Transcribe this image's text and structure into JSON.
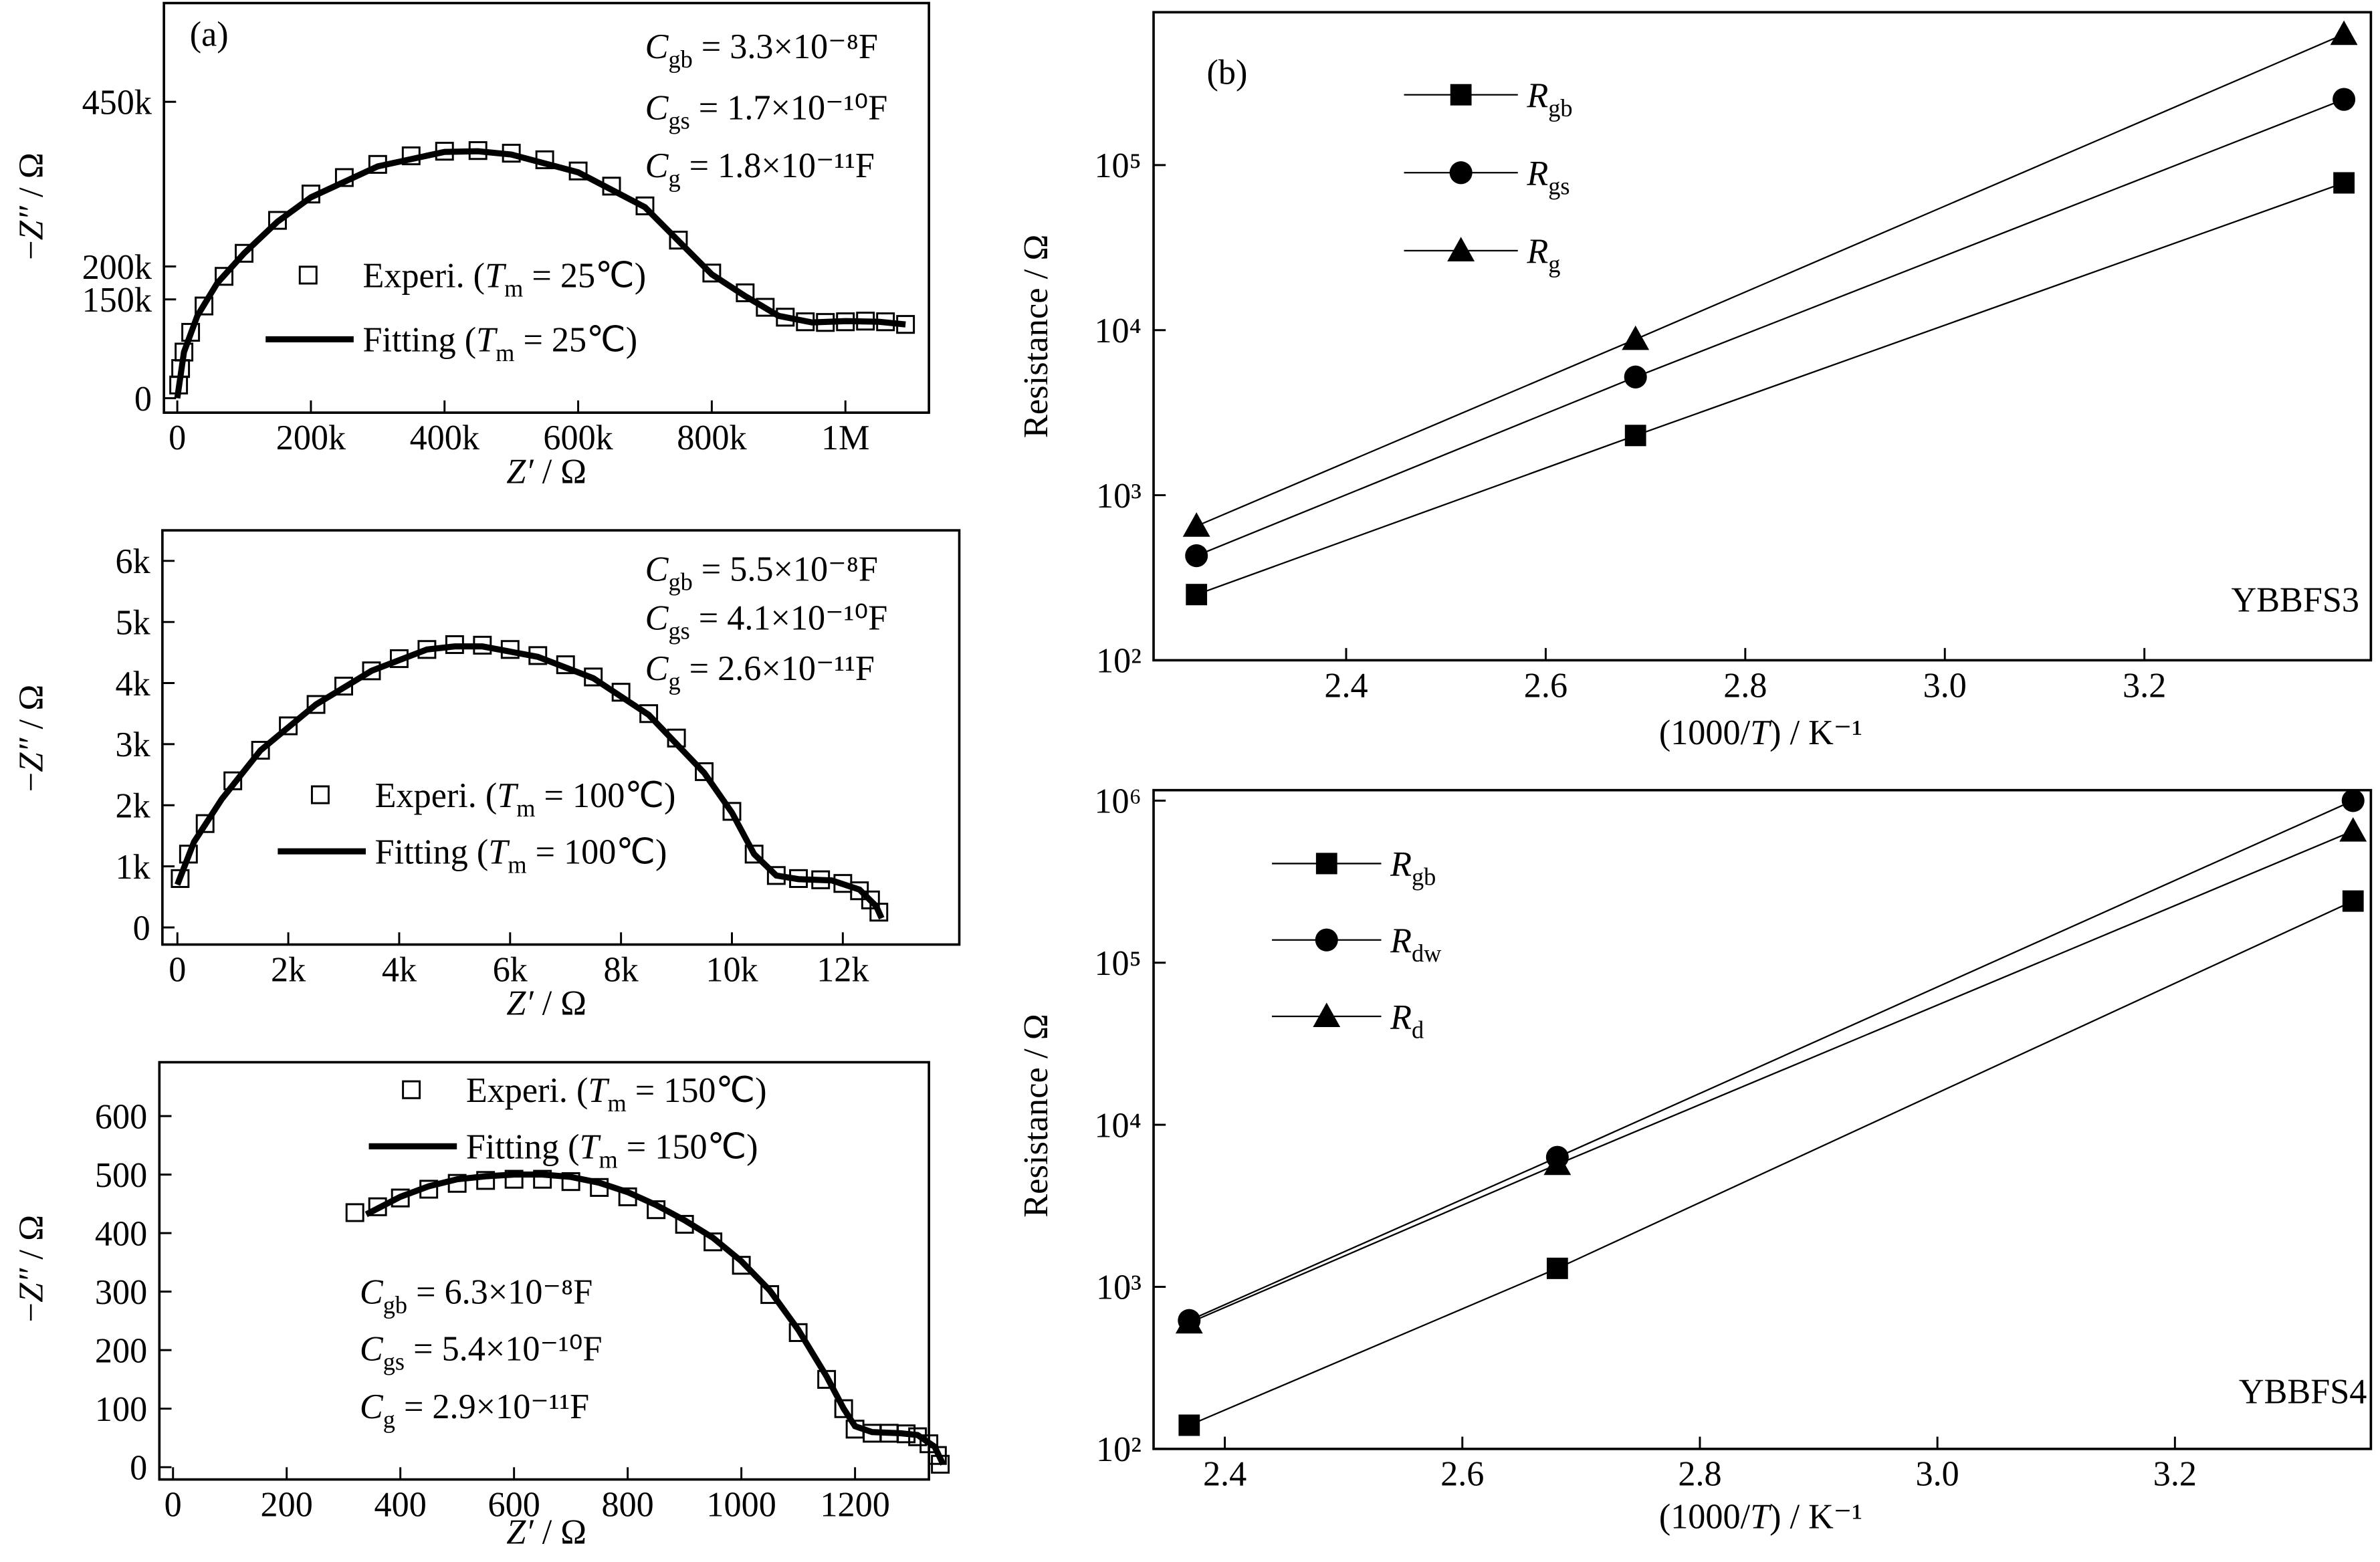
{
  "chart_data": [
    {
      "type": "scatter",
      "annotations": [
        [
          {
            "text": "(a)"
          }
        ],
        [
          {
            "text": "C",
            "style": "italic"
          },
          {
            "text": "gb",
            "style": "sub"
          },
          {
            "text": " = 3.3×10⁻⁸F"
          }
        ],
        [
          {
            "text": "C",
            "style": "italic"
          },
          {
            "text": "gs",
            "style": "sub"
          },
          {
            "text": " = 1.7×10⁻¹⁰F"
          }
        ],
        [
          {
            "text": "C",
            "style": "italic"
          },
          {
            "text": "g",
            "style": "sub"
          },
          {
            "text": " = 1.8×10⁻¹¹F"
          }
        ]
      ],
      "x_label": [
        {
          "text": "Z′",
          "style": "italic"
        },
        {
          "text": " / Ω"
        }
      ],
      "y_label": [
        {
          "text": "−"
        },
        {
          "text": "Z″",
          "style": "italic"
        },
        {
          "text": " / Ω"
        }
      ],
      "xlim": [
        -20000,
        1125000
      ],
      "xticks": [
        0,
        {
          "value": 200000,
          "label": "200k"
        },
        {
          "value": 400000,
          "label": "400k"
        },
        {
          "value": 600000,
          "label": "600k"
        },
        {
          "value": 800000,
          "label": "800k"
        },
        {
          "value": 1000000,
          "label": "1M"
        }
      ],
      "ylim": [
        -22000,
        600000
      ],
      "yticks": [
        0,
        {
          "value": 150000,
          "label": "150k"
        },
        {
          "value": 200000,
          "label": "200k"
        },
        {
          "value": 450000,
          "label": "450k"
        }
      ],
      "series": [
        {
          "name": [
            {
              "text": "Experi. ("
            },
            {
              "text": "T",
              "style": "italic"
            },
            {
              "text": "m",
              "style": "sub"
            },
            {
              "text": " = 25℃)"
            }
          ],
          "color": "#000000",
          "marker": "open-square",
          "x": [
            2000,
            5000,
            10000,
            20000,
            40000,
            70000,
            100000,
            150000,
            200000,
            250000,
            300000,
            350000,
            400000,
            450000,
            500000,
            550000,
            600000,
            650000,
            700000,
            750000,
            800000,
            850000,
            880000,
            910000,
            940000,
            970000,
            1000000,
            1030000,
            1060000,
            1090000
          ],
          "values": [
            20000,
            45000,
            70000,
            100000,
            140000,
            185000,
            220000,
            270000,
            310000,
            335000,
            355000,
            368000,
            375000,
            376000,
            372000,
            362000,
            345000,
            322000,
            292000,
            240000,
            190000,
            160000,
            138000,
            123000,
            116000,
            115000,
            116000,
            117000,
            116000,
            112000
          ]
        },
        {
          "name": [
            {
              "text": "Fitting ("
            },
            {
              "text": "T",
              "style": "italic"
            },
            {
              "text": "m",
              "style": "sub"
            },
            {
              "text": " = 25℃)"
            }
          ],
          "color": "#000000",
          "line_width": 4,
          "x": [
            0,
            10000,
            30000,
            60000,
            100000,
            150000,
            200000,
            300000,
            400000,
            450000,
            500000,
            600000,
            700000,
            800000,
            850000,
            900000,
            950000,
            1000000,
            1050000,
            1090000
          ],
          "values": [
            0,
            70000,
            125000,
            175000,
            220000,
            268000,
            305000,
            352000,
            374000,
            375000,
            370000,
            343000,
            290000,
            188000,
            155000,
            125000,
            115000,
            117000,
            116000,
            112000
          ]
        }
      ]
    },
    {
      "type": "scatter",
      "annotations": [
        [
          {
            "text": "C",
            "style": "italic"
          },
          {
            "text": "gb",
            "style": "sub"
          },
          {
            "text": " = 5.5×10⁻⁸F"
          }
        ],
        [
          {
            "text": "C",
            "style": "italic"
          },
          {
            "text": "gs",
            "style": "sub"
          },
          {
            "text": " = 4.1×10⁻¹⁰F"
          }
        ],
        [
          {
            "text": "C",
            "style": "italic"
          },
          {
            "text": "g",
            "style": "sub"
          },
          {
            "text": " = 2.6×10⁻¹¹F"
          }
        ]
      ],
      "x_label": [
        {
          "text": "Z′",
          "style": "italic"
        },
        {
          "text": " / Ω"
        }
      ],
      "y_label": [
        {
          "text": "−"
        },
        {
          "text": "Z″",
          "style": "italic"
        },
        {
          "text": " / Ω"
        }
      ],
      "xlim": [
        -270,
        14100
      ],
      "xticks": [
        0,
        {
          "value": 2000,
          "label": "2k"
        },
        {
          "value": 4000,
          "label": "4k"
        },
        {
          "value": 6000,
          "label": "6k"
        },
        {
          "value": 8000,
          "label": "8k"
        },
        {
          "value": 10000,
          "label": "10k"
        },
        {
          "value": 12000,
          "label": "12k"
        }
      ],
      "ylim": [
        -280,
        6500
      ],
      "yticks": [
        0,
        {
          "value": 1000,
          "label": "1k"
        },
        {
          "value": 2000,
          "label": "2k"
        },
        {
          "value": 3000,
          "label": "3k"
        },
        {
          "value": 4000,
          "label": "4k"
        },
        {
          "value": 5000,
          "label": "5k"
        },
        {
          "value": 6000,
          "label": "6k"
        }
      ],
      "series": [
        {
          "name": [
            {
              "text": "Experi. ("
            },
            {
              "text": "T",
              "style": "italic"
            },
            {
              "text": "m",
              "style": "sub"
            },
            {
              "text": " = 100℃)"
            }
          ],
          "color": "#000000",
          "marker": "open-square",
          "x": [
            50,
            200,
            500,
            1000,
            1500,
            2000,
            2500,
            3000,
            3500,
            4000,
            4500,
            5000,
            5500,
            6000,
            6500,
            7000,
            7500,
            8000,
            8500,
            9000,
            9500,
            10000,
            10400,
            10800,
            11200,
            11600,
            12000,
            12300,
            12500,
            12650
          ],
          "values": [
            800,
            1200,
            1700,
            2400,
            2900,
            3300,
            3650,
            3950,
            4200,
            4400,
            4550,
            4630,
            4620,
            4550,
            4450,
            4300,
            4100,
            3850,
            3500,
            3100,
            2550,
            1900,
            1200,
            850,
            800,
            780,
            720,
            600,
            450,
            250
          ]
        },
        {
          "name": [
            {
              "text": "Fitting ("
            },
            {
              "text": "T",
              "style": "italic"
            },
            {
              "text": "m",
              "style": "sub"
            },
            {
              "text": " = 100℃)"
            }
          ],
          "color": "#000000",
          "line_width": 4,
          "x": [
            0,
            300,
            800,
            1500,
            2500,
            3500,
            4500,
            5000,
            5500,
            6500,
            7500,
            8500,
            9500,
            10000,
            10400,
            10800,
            11200,
            11800,
            12300,
            12600,
            12700
          ],
          "values": [
            700,
            1400,
            2100,
            2900,
            3650,
            4200,
            4550,
            4600,
            4600,
            4430,
            4080,
            3480,
            2530,
            1880,
            1200,
            850,
            790,
            770,
            620,
            350,
            150
          ]
        }
      ]
    },
    {
      "type": "scatter",
      "annotations": [
        [
          {
            "text": "C",
            "style": "italic"
          },
          {
            "text": "gb",
            "style": "sub"
          },
          {
            "text": " = 6.3×10⁻⁸F"
          }
        ],
        [
          {
            "text": "C",
            "style": "italic"
          },
          {
            "text": "gs",
            "style": "sub"
          },
          {
            "text": " = 5.4×10⁻¹⁰F"
          }
        ],
        [
          {
            "text": "C",
            "style": "italic"
          },
          {
            "text": "g",
            "style": "sub"
          },
          {
            "text": " = 2.9×10⁻¹¹F"
          }
        ]
      ],
      "x_label": [
        {
          "text": "Z′",
          "style": "italic"
        },
        {
          "text": " / Ω"
        }
      ],
      "y_label": [
        {
          "text": "−"
        },
        {
          "text": "Z″",
          "style": "italic"
        },
        {
          "text": " / Ω"
        }
      ],
      "xlim": [
        -24,
        1330
      ],
      "xticks": [
        0,
        200,
        400,
        600,
        800,
        1000,
        1200
      ],
      "ylim": [
        -21,
        692
      ],
      "yticks": [
        0,
        100,
        200,
        300,
        400,
        500,
        600
      ],
      "series": [
        {
          "name": [
            {
              "text": "Experi. ("
            },
            {
              "text": "T",
              "style": "italic"
            },
            {
              "text": "m",
              "style": "sub"
            },
            {
              "text": " = 150℃)"
            }
          ],
          "color": "#000000",
          "marker": "open-square",
          "x": [
            320,
            360,
            400,
            450,
            500,
            550,
            600,
            650,
            700,
            750,
            800,
            850,
            900,
            950,
            1000,
            1050,
            1100,
            1150,
            1180,
            1200,
            1230,
            1260,
            1290,
            1310,
            1330,
            1345,
            1350
          ],
          "values": [
            435,
            445,
            460,
            475,
            485,
            490,
            492,
            492,
            488,
            478,
            462,
            440,
            415,
            385,
            345,
            295,
            230,
            150,
            100,
            65,
            58,
            58,
            57,
            52,
            40,
            20,
            5
          ]
        },
        {
          "name": [
            {
              "text": "Fitting ("
            },
            {
              "text": "T",
              "style": "italic"
            },
            {
              "text": "m",
              "style": "sub"
            },
            {
              "text": " = 150℃)"
            }
          ],
          "color": "#000000",
          "line_width": 4,
          "x": [
            340,
            400,
            450,
            500,
            550,
            600,
            650,
            700,
            750,
            800,
            850,
            900,
            950,
            1000,
            1050,
            1100,
            1150,
            1180,
            1200,
            1230,
            1280,
            1310,
            1340,
            1355
          ],
          "values": [
            432,
            462,
            480,
            492,
            497,
            500,
            500,
            496,
            486,
            470,
            448,
            422,
            392,
            352,
            302,
            235,
            155,
            100,
            70,
            60,
            58,
            55,
            35,
            5
          ]
        }
      ]
    },
    {
      "type": "line",
      "log_y": true,
      "annotations": [
        [
          {
            "text": "(b)"
          }
        ],
        [
          {
            "text": "YBBFS3"
          }
        ]
      ],
      "x_label": [
        {
          "text": "(1000/"
        },
        {
          "text": "T",
          "style": "italic"
        },
        {
          "text": ") / K⁻¹"
        }
      ],
      "y_label": [
        {
          "text": "Resistance / Ω"
        }
      ],
      "xlim": [
        2.207,
        3.427
      ],
      "xticks": [
        2.4,
        2.6,
        2.8,
        {
          "value": 3,
          "label": "3.0"
        },
        3.2
      ],
      "ylim": [
        100,
        843000
      ],
      "yticks": [
        {
          "value": 100,
          "label": "10²"
        },
        {
          "value": 1000,
          "label": "10³"
        },
        {
          "value": 10000,
          "label": "10⁴"
        },
        {
          "value": 100000,
          "label": "10⁵"
        }
      ],
      "x": [
        2.25,
        2.69,
        3.4
      ],
      "series": [
        {
          "name": [
            {
              "text": "R",
              "style": "italic"
            },
            {
              "text": "gb",
              "style": "sub"
            }
          ],
          "color": "#000000",
          "marker": "square",
          "line_width": 1,
          "values": [
            250,
            2300,
            78000
          ]
        },
        {
          "name": [
            {
              "text": "R",
              "style": "italic"
            },
            {
              "text": "gs",
              "style": "sub"
            }
          ],
          "color": "#000000",
          "marker": "circle",
          "line_width": 1,
          "values": [
            430,
            5200,
            250000
          ]
        },
        {
          "name": [
            {
              "text": "R",
              "style": "italic"
            },
            {
              "text": "g",
              "style": "sub"
            }
          ],
          "color": "#000000",
          "marker": "triangle",
          "line_width": 1,
          "values": [
            650,
            8800,
            620000
          ]
        }
      ]
    },
    {
      "type": "line",
      "log_y": true,
      "annotations": [
        [
          {
            "text": "YBBFS4"
          }
        ]
      ],
      "x_label": [
        {
          "text": "(1000/"
        },
        {
          "text": "T",
          "style": "italic"
        },
        {
          "text": ") / K⁻¹"
        }
      ],
      "y_label": [
        {
          "text": "Resistance / Ω"
        }
      ],
      "xlim": [
        2.34,
        3.365
      ],
      "xticks": [
        2.4,
        2.6,
        2.8,
        {
          "value": 3,
          "label": "3.0"
        },
        3.2
      ],
      "ylim": [
        100,
        1160000
      ],
      "yticks": [
        {
          "value": 100,
          "label": "10²"
        },
        {
          "value": 1000,
          "label": "10³"
        },
        {
          "value": 10000,
          "label": "10⁴"
        },
        {
          "value": 100000,
          "label": "10⁵"
        },
        {
          "value": 1000000,
          "label": "10⁶"
        }
      ],
      "x": [
        2.37,
        2.68,
        3.35
      ],
      "series": [
        {
          "name": [
            {
              "text": "R",
              "style": "italic"
            },
            {
              "text": "gb",
              "style": "sub"
            }
          ],
          "color": "#000000",
          "marker": "square",
          "line_width": 1,
          "values": [
            140,
            1300,
            240000
          ]
        },
        {
          "name": [
            {
              "text": "R",
              "style": "italic"
            },
            {
              "text": "dw",
              "style": "sub"
            }
          ],
          "color": "#000000",
          "marker": "circle",
          "line_width": 1,
          "values": [
            620,
            6300,
            1000000
          ]
        },
        {
          "name": [
            {
              "text": "R",
              "style": "italic"
            },
            {
              "text": "d",
              "style": "sub"
            }
          ],
          "color": "#000000",
          "marker": "triangle",
          "line_width": 1,
          "values": [
            600,
            5700,
            650000
          ]
        }
      ]
    }
  ]
}
